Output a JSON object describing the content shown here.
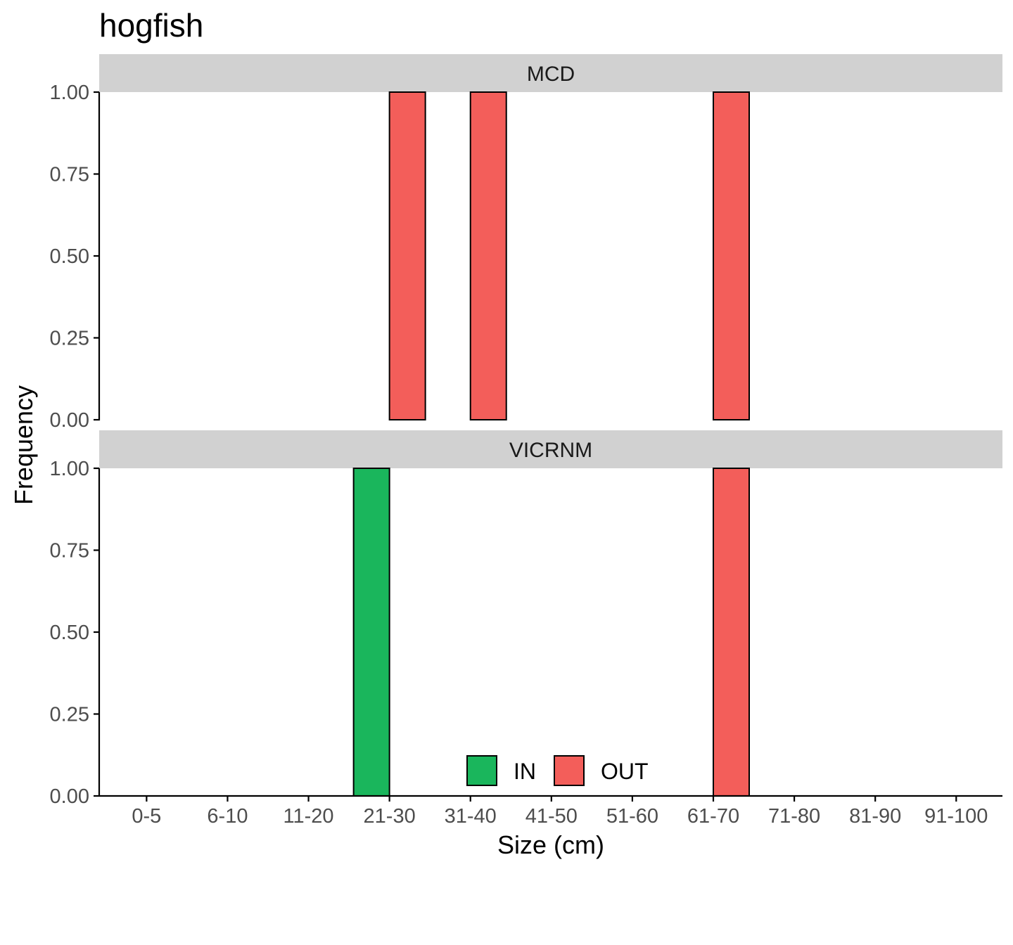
{
  "chart_data": {
    "type": "bar",
    "title": "hogfish",
    "xlabel": "Size (cm)",
    "ylabel": "Frequency",
    "categories": [
      "0-5",
      "6-10",
      "11-20",
      "21-30",
      "31-40",
      "41-50",
      "51-60",
      "61-70",
      "71-80",
      "81-90",
      "91-100"
    ],
    "ylim": [
      0,
      1
    ],
    "yticks": [
      "0.00",
      "0.25",
      "0.50",
      "0.75",
      "1.00"
    ],
    "grid": false,
    "legend_position": "bottom",
    "legend": [
      {
        "name": "IN",
        "color": "#1AB65C"
      },
      {
        "name": "OUT",
        "color": "#F35E5A"
      }
    ],
    "facets": [
      {
        "label": "MCD",
        "series": [
          {
            "name": "IN",
            "values": [
              0,
              0,
              0,
              0,
              0,
              0,
              0,
              0,
              0,
              0,
              0
            ]
          },
          {
            "name": "OUT",
            "values": [
              0,
              0,
              0,
              1,
              1,
              0,
              0,
              1,
              0,
              0,
              0
            ]
          }
        ]
      },
      {
        "label": "VICRNM",
        "series": [
          {
            "name": "IN",
            "values": [
              0,
              0,
              0,
              1,
              0,
              0,
              0,
              0,
              0,
              0,
              0
            ]
          },
          {
            "name": "OUT",
            "values": [
              0,
              0,
              0,
              0,
              0,
              0,
              0,
              1,
              0,
              0,
              0
            ]
          }
        ]
      }
    ]
  }
}
